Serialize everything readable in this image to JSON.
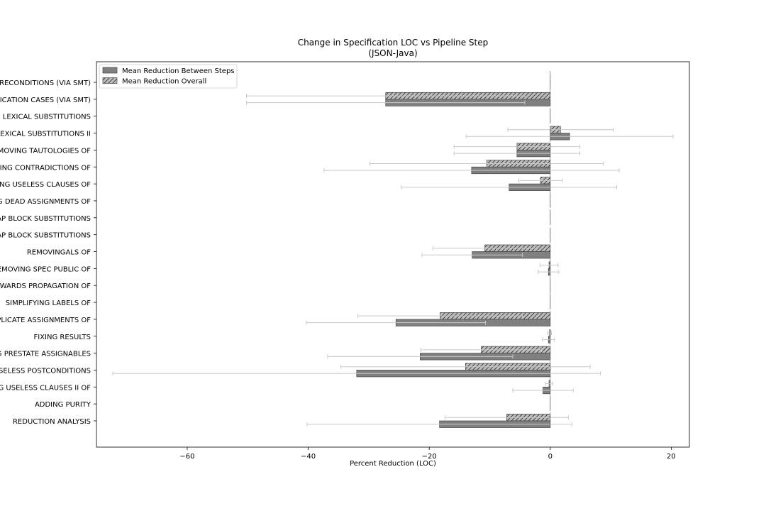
{
  "chart_data": {
    "type": "bar",
    "orientation": "horizontal",
    "title_lines": [
      "Change in Specification LOC vs Pipeline Step",
      "(JSON-Java)"
    ],
    "xlabel": "Percent Reduction (LOC)",
    "ylabel": "",
    "xlim": [
      -75,
      23
    ],
    "xticks": [
      -60,
      -40,
      -20,
      0,
      20
    ],
    "grid": false,
    "legend_position": "top-left",
    "categories": [
      "REMOVING USELESS PRECONDITIONS (VIA SMT)",
      "REMOVING USELESS SPECIFICATION CASES (VIA SMT)",
      "PERFORMING LEXICAL SUBSTITUTIONS",
      "PERFORMING LEXICAL SUBSTITUTIONS II",
      "REMOVING TAUTOLOGIES OF",
      "REMOVING CONTRADICTIONS OF",
      "REMOVING USELESS CLAUSES OF",
      "REMOVING DEAD ASSIGNMENTS OF",
      "PERFORMING HEAP BLOCK SUBSTITUTIONS",
      "PERFORMING HEAP BLOCK SUBSTITUTIONS",
      "REMOVINGALS OF",
      "REMOVING SPEC PUBLIC OF",
      "BACKWARDS PROPAGATION OF",
      "SIMPLIFYING LABELS OF",
      "REMOVING DUPLICATE ASSIGNMENTS OF",
      "FIXING RESULTS",
      "REMOVING PRESTATE ASSIGNABLES",
      "REMOVING USELESS POSTCONDITIONS",
      "REMOVING USELESS CLAUSES II OF",
      "ADDING PURITY",
      "REDUCTION ANALYSIS"
    ],
    "series": [
      {
        "name": "Mean Reduction Overall",
        "color": "#bdbdbd",
        "hatch": "diagonal",
        "values": [
          0,
          -27.2,
          0,
          1.7,
          -5.5,
          -10.5,
          -1.6,
          0,
          0,
          0,
          -10.8,
          -0.2,
          0,
          0,
          -18.2,
          -0.1,
          -11.4,
          -14.0,
          -0.2,
          0,
          -7.2
        ],
        "err": [
          0,
          23.0,
          0,
          8.7,
          10.4,
          19.3,
          3.6,
          0,
          0,
          0,
          8.6,
          1.5,
          0,
          0,
          13.6,
          0.3,
          10.0,
          20.6,
          0.6,
          0,
          10.2
        ]
      },
      {
        "name": "Mean Reduction Between Steps",
        "color": "#808080",
        "hatch": "none",
        "values": [
          0,
          -27.2,
          0,
          3.2,
          -5.5,
          -13.0,
          -6.8,
          0,
          0,
          0,
          -12.9,
          -0.3,
          0,
          0,
          -25.5,
          -0.3,
          -21.5,
          -32.0,
          -1.2,
          0,
          -18.3
        ],
        "err": [
          0,
          23.0,
          0,
          17.1,
          10.4,
          24.4,
          17.8,
          0,
          0,
          0,
          8.3,
          1.7,
          0,
          0,
          14.8,
          1.0,
          15.3,
          40.3,
          5.0,
          0,
          21.9
        ]
      }
    ]
  }
}
